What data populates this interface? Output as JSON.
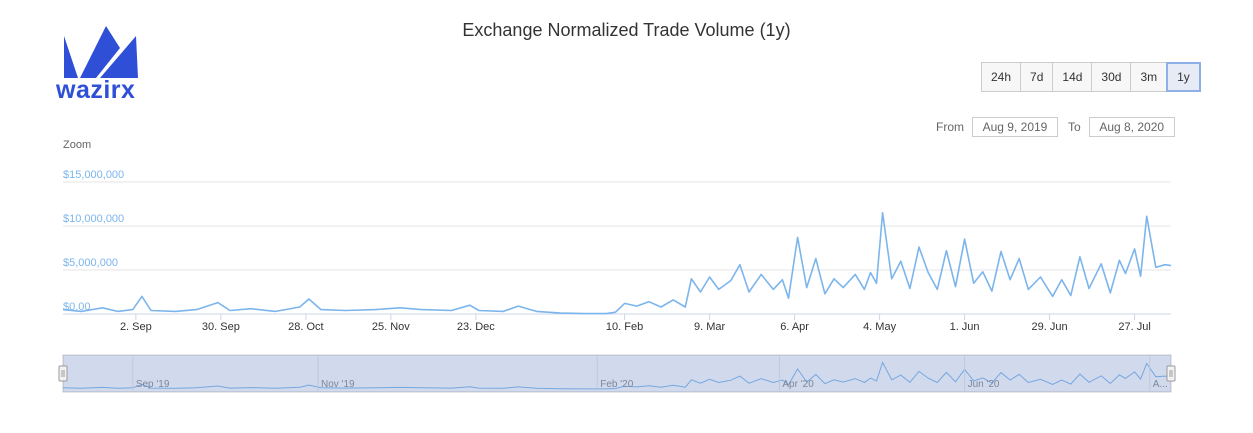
{
  "brand": {
    "name": "wazirx",
    "color": "#2e4fd6"
  },
  "title": "Exchange Normalized Trade Volume (1y)",
  "range_buttons": [
    {
      "label": "24h",
      "active": false
    },
    {
      "label": "7d",
      "active": false
    },
    {
      "label": "14d",
      "active": false
    },
    {
      "label": "30d",
      "active": false
    },
    {
      "label": "3m",
      "active": false
    },
    {
      "label": "1y",
      "active": true
    }
  ],
  "date_range": {
    "from_label": "From",
    "from_value": "Aug 9, 2019",
    "to_label": "To",
    "to_value": "Aug 8, 2020"
  },
  "zoom_label": "Zoom",
  "chart_data": {
    "type": "line",
    "title": "Exchange Normalized Trade Volume (1y)",
    "ylim": [
      0,
      15000000
    ],
    "yticks": [
      {
        "value": 0,
        "label": "$0.00"
      },
      {
        "value": 5000000,
        "label": "$5,000,000"
      },
      {
        "value": 10000000,
        "label": "$10,000,000"
      },
      {
        "value": 15000000,
        "label": "$15,000,000"
      }
    ],
    "x_start": "2019-08-09",
    "x_end": "2020-08-08",
    "xticks": [
      {
        "date": "2019-09-02",
        "label": "2. Sep"
      },
      {
        "date": "2019-09-30",
        "label": "30. Sep"
      },
      {
        "date": "2019-10-28",
        "label": "28. Oct"
      },
      {
        "date": "2019-11-25",
        "label": "25. Nov"
      },
      {
        "date": "2019-12-23",
        "label": "23. Dec"
      },
      {
        "date": "2020-02-10",
        "label": "10. Feb"
      },
      {
        "date": "2020-03-09",
        "label": "9. Mar"
      },
      {
        "date": "2020-04-06",
        "label": "6. Apr"
      },
      {
        "date": "2020-05-04",
        "label": "4. May"
      },
      {
        "date": "2020-06-01",
        "label": "1. Jun"
      },
      {
        "date": "2020-06-29",
        "label": "29. Jun"
      },
      {
        "date": "2020-07-27",
        "label": "27. Jul"
      }
    ],
    "navigator_ticks": [
      {
        "date": "2019-09-01",
        "label": "Sep '19"
      },
      {
        "date": "2019-11-01",
        "label": "Nov '19"
      },
      {
        "date": "2020-02-01",
        "label": "Feb '20"
      },
      {
        "date": "2020-04-01",
        "label": "Apr '20"
      },
      {
        "date": "2020-06-01",
        "label": "Jun '20"
      },
      {
        "date": "2020-08-01",
        "label": "A..."
      }
    ],
    "series": [
      {
        "points": [
          [
            "2019-08-09",
            500000
          ],
          [
            "2019-08-15",
            300000
          ],
          [
            "2019-08-22",
            700000
          ],
          [
            "2019-08-27",
            300000
          ],
          [
            "2019-09-01",
            500000
          ],
          [
            "2019-09-04",
            2000000
          ],
          [
            "2019-09-07",
            400000
          ],
          [
            "2019-09-15",
            300000
          ],
          [
            "2019-09-22",
            500000
          ],
          [
            "2019-09-29",
            1300000
          ],
          [
            "2019-10-03",
            400000
          ],
          [
            "2019-10-10",
            600000
          ],
          [
            "2019-10-18",
            300000
          ],
          [
            "2019-10-26",
            800000
          ],
          [
            "2019-10-29",
            1700000
          ],
          [
            "2019-11-02",
            500000
          ],
          [
            "2019-11-10",
            400000
          ],
          [
            "2019-11-20",
            500000
          ],
          [
            "2019-11-28",
            700000
          ],
          [
            "2019-12-05",
            500000
          ],
          [
            "2019-12-15",
            400000
          ],
          [
            "2019-12-21",
            1000000
          ],
          [
            "2019-12-24",
            400000
          ],
          [
            "2020-01-01",
            300000
          ],
          [
            "2020-01-06",
            900000
          ],
          [
            "2020-01-12",
            300000
          ],
          [
            "2020-01-20",
            100000
          ],
          [
            "2020-01-28",
            50000
          ],
          [
            "2020-02-04",
            50000
          ],
          [
            "2020-02-07",
            200000
          ],
          [
            "2020-02-10",
            1200000
          ],
          [
            "2020-02-14",
            900000
          ],
          [
            "2020-02-18",
            1400000
          ],
          [
            "2020-02-22",
            800000
          ],
          [
            "2020-02-26",
            1600000
          ],
          [
            "2020-03-01",
            800000
          ],
          [
            "2020-03-03",
            4000000
          ],
          [
            "2020-03-06",
            2500000
          ],
          [
            "2020-03-09",
            4200000
          ],
          [
            "2020-03-12",
            2800000
          ],
          [
            "2020-03-16",
            3800000
          ],
          [
            "2020-03-19",
            5600000
          ],
          [
            "2020-03-22",
            2500000
          ],
          [
            "2020-03-26",
            4500000
          ],
          [
            "2020-03-30",
            2800000
          ],
          [
            "2020-04-02",
            3900000
          ],
          [
            "2020-04-04",
            1800000
          ],
          [
            "2020-04-07",
            8700000
          ],
          [
            "2020-04-10",
            3000000
          ],
          [
            "2020-04-13",
            6300000
          ],
          [
            "2020-04-16",
            2300000
          ],
          [
            "2020-04-19",
            4000000
          ],
          [
            "2020-04-22",
            3000000
          ],
          [
            "2020-04-26",
            4500000
          ],
          [
            "2020-04-29",
            2800000
          ],
          [
            "2020-05-01",
            4700000
          ],
          [
            "2020-05-03",
            3500000
          ],
          [
            "2020-05-05",
            11500000
          ],
          [
            "2020-05-08",
            4000000
          ],
          [
            "2020-05-11",
            6000000
          ],
          [
            "2020-05-14",
            2900000
          ],
          [
            "2020-05-17",
            7600000
          ],
          [
            "2020-05-20",
            4700000
          ],
          [
            "2020-05-23",
            2800000
          ],
          [
            "2020-05-26",
            7200000
          ],
          [
            "2020-05-29",
            3100000
          ],
          [
            "2020-06-01",
            8500000
          ],
          [
            "2020-06-04",
            3500000
          ],
          [
            "2020-06-07",
            4800000
          ],
          [
            "2020-06-10",
            2600000
          ],
          [
            "2020-06-13",
            7100000
          ],
          [
            "2020-06-16",
            3900000
          ],
          [
            "2020-06-19",
            6300000
          ],
          [
            "2020-06-22",
            2800000
          ],
          [
            "2020-06-26",
            4200000
          ],
          [
            "2020-06-30",
            2000000
          ],
          [
            "2020-07-03",
            3900000
          ],
          [
            "2020-07-06",
            2100000
          ],
          [
            "2020-07-09",
            6500000
          ],
          [
            "2020-07-12",
            2900000
          ],
          [
            "2020-07-16",
            5700000
          ],
          [
            "2020-07-19",
            2400000
          ],
          [
            "2020-07-22",
            6100000
          ],
          [
            "2020-07-24",
            4600000
          ],
          [
            "2020-07-27",
            7400000
          ],
          [
            "2020-07-29",
            4300000
          ],
          [
            "2020-07-31",
            11100000
          ],
          [
            "2020-08-03",
            5300000
          ],
          [
            "2020-08-06",
            5600000
          ],
          [
            "2020-08-08",
            5500000
          ]
        ]
      }
    ],
    "line_color": "#7cb5ec",
    "grid": true
  }
}
